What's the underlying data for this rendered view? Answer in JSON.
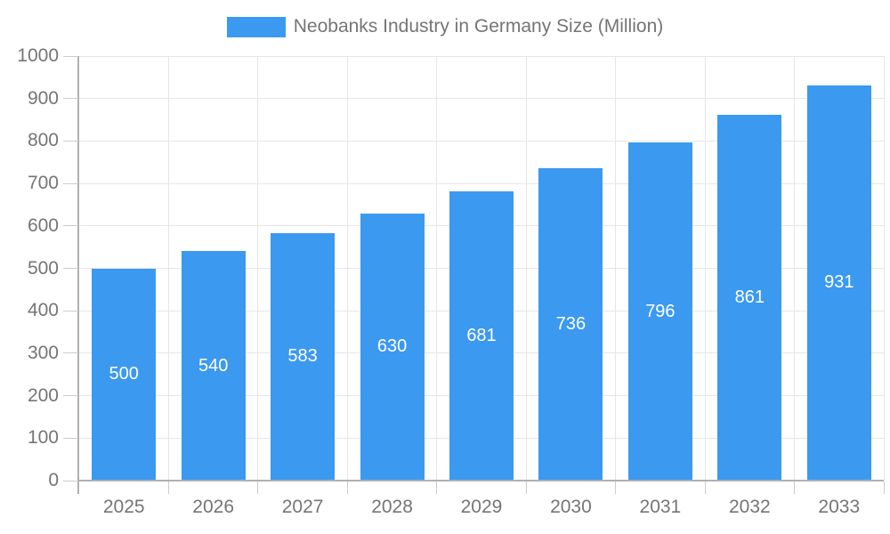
{
  "chart_data": {
    "type": "bar",
    "title": "Neobanks Industry in Germany Size (Million)",
    "categories": [
      "2025",
      "2026",
      "2027",
      "2028",
      "2029",
      "2030",
      "2031",
      "2032",
      "2033"
    ],
    "series": [
      {
        "name": "Neobanks Industry in Germany Size (Million)",
        "values": [
          500,
          540,
          583,
          630,
          681,
          736,
          796,
          861,
          931
        ]
      }
    ],
    "values": [
      500,
      540,
      583,
      630,
      681,
      736,
      796,
      861,
      931
    ],
    "bar_labels": [
      "500",
      "540",
      "583",
      "630",
      "681",
      "736",
      "796",
      "861",
      "931"
    ],
    "xlabel": "",
    "ylabel": "",
    "ylim": [
      0,
      1000
    ],
    "ytick_interval": 100,
    "yticks": [
      0,
      100,
      200,
      300,
      400,
      500,
      600,
      700,
      800,
      900,
      1000
    ],
    "grid": true,
    "legend_position": "top",
    "colors": {
      "bar": "#3b99f0",
      "bar_value_text": "#ffffff",
      "axis_line": "#b1b1b1",
      "grid_line": "#e6e6e6",
      "tick_mark": "#cccccc",
      "axis_text": "#757575",
      "background": "#ffffff"
    }
  }
}
